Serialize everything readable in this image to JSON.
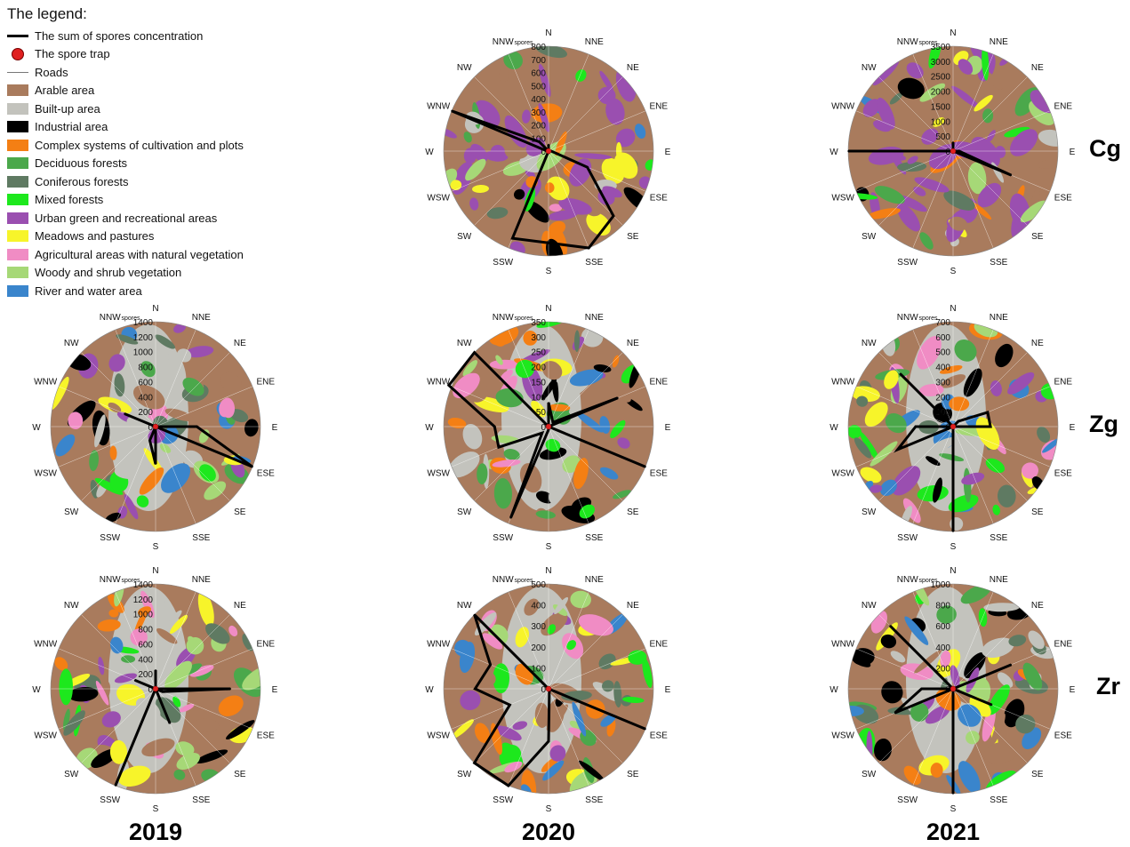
{
  "legend": {
    "title": "The legend:",
    "items": [
      {
        "label": "The sum of spores concentration",
        "kind": "line-thick",
        "color": "#000000"
      },
      {
        "label": "The spore trap",
        "kind": "dot",
        "color": "#e02020"
      },
      {
        "label": "Roads",
        "kind": "line-thin",
        "color": "#777777"
      },
      {
        "label": "Arable area",
        "kind": "fill",
        "color": "#a97b5d"
      },
      {
        "label": "Built-up area",
        "kind": "fill",
        "color": "#c3c3bd"
      },
      {
        "label": "Industrial area",
        "kind": "fill",
        "color": "#000000"
      },
      {
        "label": "Complex systems of cultivation and plots",
        "kind": "fill",
        "color": "#f47f14"
      },
      {
        "label": "Deciduous forests",
        "kind": "fill",
        "color": "#4ba84b"
      },
      {
        "label": "Coniferous forests",
        "kind": "fill",
        "color": "#5f7a62"
      },
      {
        "label": "Mixed forests",
        "kind": "fill",
        "color": "#1de81d"
      },
      {
        "label": "Urban green and recreational areas",
        "kind": "fill",
        "color": "#9a4fb0"
      },
      {
        "label": "Meadows and pastures",
        "kind": "fill",
        "color": "#f7f42a"
      },
      {
        "label": "Agricultural areas with natural vegetation",
        "kind": "fill",
        "color": "#f08cc4"
      },
      {
        "label": "Woody and shrub vegetation",
        "kind": "fill",
        "color": "#a6d877"
      },
      {
        "label": "River and water area",
        "kind": "fill",
        "color": "#3a85cc"
      }
    ]
  },
  "columns": [
    "2019",
    "2020",
    "2021"
  ],
  "rows": [
    "Cg",
    "Zg",
    "Zr"
  ],
  "directions": [
    "N",
    "NNE",
    "NE",
    "ENE",
    "E",
    "ESE",
    "SE",
    "SSE",
    "S",
    "SSW",
    "SW",
    "WSW",
    "W",
    "WNW",
    "NW",
    "NNW"
  ],
  "chart_data": [
    {
      "type": "radar",
      "row": "Cg",
      "year": "2020",
      "radial_label": "spores",
      "ticks": [
        0,
        100,
        200,
        300,
        400,
        500,
        600,
        700,
        800
      ],
      "categories": [
        "N",
        "NNE",
        "NE",
        "ENE",
        "E",
        "ESE",
        "SE",
        "SSE",
        "S",
        "SSW",
        "SW",
        "WSW",
        "W",
        "WNW",
        "NW",
        "NNW"
      ],
      "values": [
        50,
        0,
        0,
        0,
        20,
        320,
        700,
        800,
        700,
        720,
        0,
        0,
        10,
        800,
        100,
        0
      ]
    },
    {
      "type": "radar",
      "row": "Cg",
      "year": "2021",
      "radial_label": "spores",
      "ticks": [
        0,
        500,
        1000,
        1500,
        2000,
        2500,
        3000,
        3500
      ],
      "categories": [
        "N",
        "NNE",
        "NE",
        "ENE",
        "E",
        "ESE",
        "SE",
        "SSE",
        "S",
        "SSW",
        "SW",
        "WSW",
        "W",
        "WNW",
        "NW",
        "NNW"
      ],
      "values": [
        300,
        0,
        0,
        0,
        200,
        2100,
        0,
        0,
        0,
        0,
        0,
        0,
        3500,
        0,
        0,
        0
      ]
    },
    {
      "type": "radar",
      "row": "Zg",
      "year": "2019",
      "radial_label": "spores",
      "ticks": [
        0,
        200,
        400,
        600,
        800,
        1000,
        1200,
        1400
      ],
      "categories": [
        "N",
        "NNE",
        "NE",
        "ENE",
        "E",
        "ESE",
        "SE",
        "SSE",
        "S",
        "SSW",
        "SW",
        "WSW",
        "W",
        "WNW",
        "NW",
        "NNW"
      ],
      "values": [
        0,
        0,
        0,
        0,
        550,
        1400,
        0,
        0,
        500,
        200,
        0,
        0,
        0,
        450,
        0,
        0
      ]
    },
    {
      "type": "radar",
      "row": "Zg",
      "year": "2020",
      "radial_label": "spores",
      "ticks": [
        0,
        50,
        100,
        150,
        200,
        250,
        300,
        350
      ],
      "categories": [
        "N",
        "NNE",
        "NE",
        "ENE",
        "E",
        "ESE",
        "SE",
        "SSE",
        "S",
        "SSW",
        "SW",
        "WSW",
        "W",
        "WNW",
        "NW",
        "NNW"
      ],
      "values": [
        80,
        30,
        20,
        250,
        0,
        350,
        0,
        0,
        10,
        330,
        30,
        180,
        180,
        360,
        350,
        0
      ]
    },
    {
      "type": "radar",
      "row": "Zg",
      "year": "2021",
      "radial_label": "spores",
      "ticks": [
        0,
        100,
        200,
        300,
        400,
        500,
        600,
        700
      ],
      "categories": [
        "N",
        "NNE",
        "NE",
        "ENE",
        "E",
        "ESE",
        "SE",
        "SSE",
        "S",
        "SSW",
        "SW",
        "WSW",
        "W",
        "WNW",
        "NW",
        "NNW"
      ],
      "values": [
        0,
        0,
        50,
        250,
        250,
        0,
        0,
        0,
        700,
        0,
        0,
        400,
        250,
        0,
        500,
        0
      ]
    },
    {
      "type": "radar",
      "row": "Zr",
      "year": "2019",
      "radial_label": "spores",
      "ticks": [
        0,
        200,
        400,
        600,
        800,
        1000,
        1200,
        1400
      ],
      "categories": [
        "N",
        "NNE",
        "NE",
        "ENE",
        "E",
        "ESE",
        "SE",
        "SSE",
        "S",
        "SSW",
        "SW",
        "WSW",
        "W",
        "WNW",
        "NW",
        "NNW"
      ],
      "values": [
        250,
        0,
        0,
        0,
        1000,
        100,
        0,
        500,
        0,
        1400,
        0,
        0,
        0,
        300,
        0,
        0
      ]
    },
    {
      "type": "radar",
      "row": "Zr",
      "year": "2020",
      "radial_label": "spores",
      "ticks": [
        0,
        100,
        200,
        300,
        400,
        500
      ],
      "categories": [
        "N",
        "NNE",
        "NE",
        "ENE",
        "E",
        "ESE",
        "SE",
        "SSE",
        "S",
        "SSW",
        "SW",
        "WSW",
        "W",
        "WNW",
        "NW",
        "NNW"
      ],
      "values": [
        0,
        0,
        0,
        0,
        0,
        500,
        0,
        10,
        250,
        500,
        500,
        200,
        350,
        300,
        500,
        0
      ]
    },
    {
      "type": "radar",
      "row": "Zr",
      "year": "2021",
      "radial_label": "spores",
      "ticks": [
        0,
        200,
        400,
        600,
        800,
        1000
      ],
      "categories": [
        "N",
        "NNE",
        "NE",
        "ENE",
        "E",
        "ESE",
        "SE",
        "SSE",
        "S",
        "SSW",
        "SW",
        "WSW",
        "W",
        "WNW",
        "NW",
        "NNW"
      ],
      "values": [
        0,
        0,
        0,
        600,
        0,
        400,
        0,
        0,
        1000,
        0,
        0,
        600,
        300,
        0,
        850,
        0
      ]
    }
  ]
}
